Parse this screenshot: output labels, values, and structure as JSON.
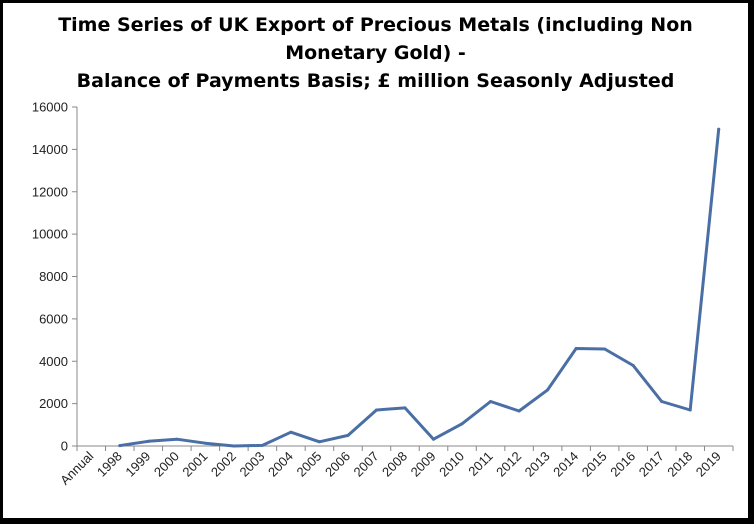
{
  "chart_data": {
    "type": "line",
    "title_lines": [
      "Time Series of UK Export of Precious Metals (including Non",
      "Monetary Gold) -",
      "Balance of Payments Basis; £ million Seasonly Adjusted"
    ],
    "categories": [
      "Annual",
      "1998",
      "1999",
      "2000",
      "2001",
      "2002",
      "2003",
      "2004",
      "2005",
      "2006",
      "2007",
      "2008",
      "2009",
      "2010",
      "2011",
      "2012",
      "2013",
      "2014",
      "2015",
      "2016",
      "2017",
      "2018",
      "2019"
    ],
    "series": [
      {
        "values": [
          null,
          20,
          220,
          320,
          130,
          0,
          30,
          650,
          200,
          500,
          1700,
          1800,
          320,
          1050,
          2100,
          1650,
          2650,
          4600,
          4580,
          3800,
          2100,
          1700,
          14950
        ]
      }
    ],
    "yticks": [
      0,
      2000,
      4000,
      6000,
      8000,
      10000,
      12000,
      14000,
      16000
    ],
    "ylim": [
      0,
      16000
    ],
    "grid": false,
    "legend": "none",
    "colors": {
      "line": "#4a6fa5",
      "axis": "#888888"
    }
  }
}
